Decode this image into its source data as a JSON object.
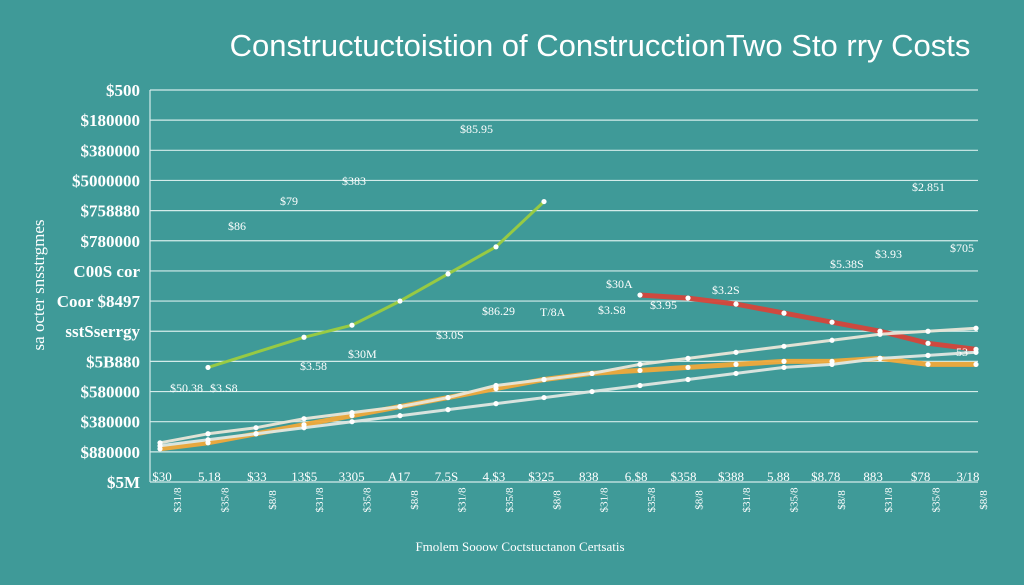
{
  "chart_data": {
    "type": "line",
    "title": "Constructuctoistion of ConstrucctionTwo Sto rry Costs",
    "xlabel": "Fmolem Sooow Coctstuctanon Certsatis",
    "ylabel": "sa octer snsstrgmes",
    "y_tick_labels": [
      "$500",
      "$180000",
      "$380000",
      "$5000000",
      "$758880",
      "$780000",
      "C00S cor",
      "Coor $8497",
      "sstSserrgy",
      "$5B880",
      "$580000",
      "$380000",
      "$880000",
      "$5M"
    ],
    "y_range_index": [
      0,
      13
    ],
    "x_tick_labels": [
      "$30",
      "5.18",
      "$33",
      "13$5",
      "3305",
      "A17",
      "7.5S",
      "4.$3",
      "$325",
      "838",
      "6.$8",
      "$358",
      "$388",
      "5.88",
      "$8.78",
      "883",
      "$78",
      "3/18"
    ],
    "x_sub_labels": [
      "$31/8",
      "$35/8",
      "$8/8",
      "$31/8",
      "$35/8",
      "$8/8",
      "$31/8",
      "$35/8",
      "$8/8",
      "$31/8",
      "$35/8",
      "$8/8",
      "$31/8",
      "$35/8",
      "$8/8",
      "$31/8",
      "$35/8",
      "$8/8"
    ],
    "series": [
      {
        "color": "#9ccc3e",
        "values": [
          null,
          9.2,
          null,
          8.2,
          7.8,
          7.0,
          6.1,
          5.2,
          3.7
        ]
      },
      {
        "color": "#d6453a",
        "values": [
          null,
          null,
          null,
          null,
          null,
          null,
          null,
          null,
          null,
          null,
          6.8,
          6.9,
          7.1,
          7.4,
          7.7,
          8.0,
          8.4,
          8.6
        ]
      },
      {
        "color": "#f0a93a",
        "values": [
          11.9,
          11.7,
          11.4,
          11.1,
          10.8,
          10.5,
          10.2,
          9.9,
          9.6,
          9.4,
          9.3,
          9.2,
          9.1,
          9.0,
          9.0,
          8.9,
          9.1,
          9.1
        ]
      },
      {
        "color": "#e9e6d8",
        "values": [
          11.7,
          11.4,
          11.2,
          10.9,
          10.7,
          10.5,
          10.2,
          9.8,
          9.6,
          9.4,
          9.1,
          8.9,
          8.7,
          8.5,
          8.3,
          8.1,
          8.0,
          7.9
        ]
      },
      {
        "color": "#dfe7e2",
        "values": [
          11.8,
          11.6,
          11.4,
          11.2,
          11.0,
          10.8,
          10.6,
          10.4,
          10.2,
          10.0,
          9.8,
          9.6,
          9.4,
          9.2,
          9.1,
          8.9,
          8.8,
          8.7
        ]
      }
    ],
    "annotations": [
      "$85.95",
      "$383",
      "$79",
      "$86",
      "$2.851",
      "$30A",
      "$3.S8",
      "$3.2S",
      "T/8A",
      "$86.29",
      "$3.0S",
      "$3.95",
      "$5.38S",
      "$3.93",
      "$705",
      "$30M",
      "$3.58",
      "$3.S8",
      "$50.38",
      "53"
    ],
    "grid": true,
    "legend": "none"
  }
}
